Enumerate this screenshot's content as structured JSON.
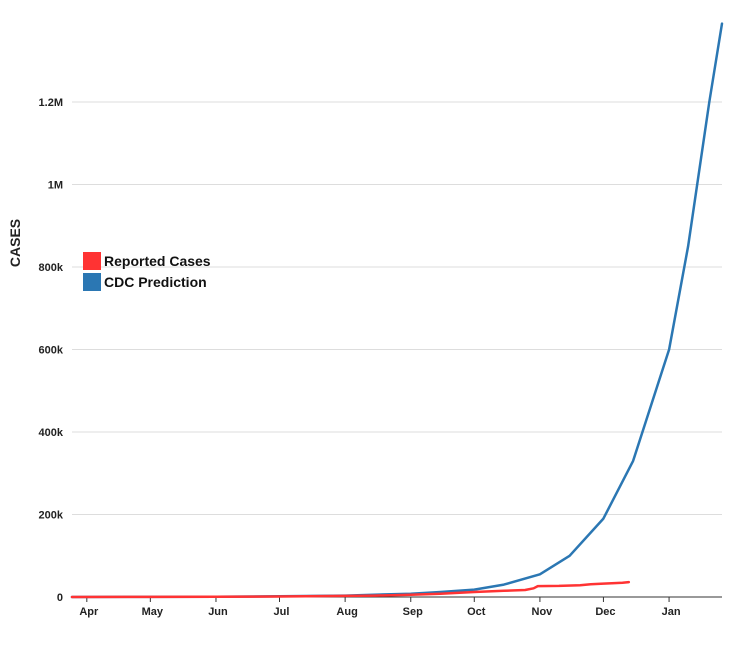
{
  "chart_data": {
    "type": "line",
    "title": "",
    "ylabel": "CASES",
    "xlabel": "",
    "ylim": [
      0,
      1400000
    ],
    "grid": true,
    "legend_position": "left",
    "x_tick_labels": [
      "Apr",
      "May",
      "Jun",
      "Jul",
      "Aug",
      "Sep",
      "Oct",
      "Nov",
      "Dec",
      "Jan"
    ],
    "y_ticks": [
      {
        "value": 0,
        "label": "0"
      },
      {
        "value": 200000,
        "label": "200k"
      },
      {
        "value": 400000,
        "label": "400k"
      },
      {
        "value": 600000,
        "label": "600k"
      },
      {
        "value": 800000,
        "label": "800k"
      },
      {
        "value": 1000000,
        "label": "1M"
      },
      {
        "value": 1200000,
        "label": "1.2M"
      }
    ],
    "series": [
      {
        "name": "Reported Cases",
        "color": "#ff3333",
        "points": [
          [
            "2014-03-25",
            0
          ],
          [
            "2014-05-01",
            300
          ],
          [
            "2014-06-01",
            700
          ],
          [
            "2014-07-01",
            1300
          ],
          [
            "2014-08-01",
            2600
          ],
          [
            "2014-08-15",
            3500
          ],
          [
            "2014-09-01",
            5500
          ],
          [
            "2014-09-15",
            8000
          ],
          [
            "2014-10-01",
            12000
          ],
          [
            "2014-10-15",
            15000
          ],
          [
            "2014-10-25",
            17000
          ],
          [
            "2014-10-29",
            21000
          ],
          [
            "2014-10-31",
            26500
          ],
          [
            "2014-11-10",
            27000
          ],
          [
            "2014-11-20",
            28500
          ],
          [
            "2014-11-25",
            31000
          ],
          [
            "2014-12-01",
            32500
          ],
          [
            "2014-12-05",
            33500
          ],
          [
            "2014-12-10",
            34500
          ],
          [
            "2014-12-13",
            36000
          ]
        ]
      },
      {
        "name": "CDC Prediction",
        "color": "#2b77b3",
        "points": [
          [
            "2014-03-25",
            0
          ],
          [
            "2014-05-01",
            300
          ],
          [
            "2014-06-01",
            800
          ],
          [
            "2014-07-01",
            1800
          ],
          [
            "2014-08-01",
            3500
          ],
          [
            "2014-09-01",
            8000
          ],
          [
            "2014-09-15",
            12000
          ],
          [
            "2014-10-01",
            18000
          ],
          [
            "2014-10-15",
            30000
          ],
          [
            "2014-11-01",
            55000
          ],
          [
            "2014-11-15",
            100000
          ],
          [
            "2014-12-01",
            190000
          ],
          [
            "2014-12-15",
            330000
          ],
          [
            "2015-01-01",
            600000
          ],
          [
            "2015-01-10",
            850000
          ],
          [
            "2015-01-20",
            1200000
          ],
          [
            "2015-01-26",
            1390000
          ]
        ]
      }
    ]
  }
}
